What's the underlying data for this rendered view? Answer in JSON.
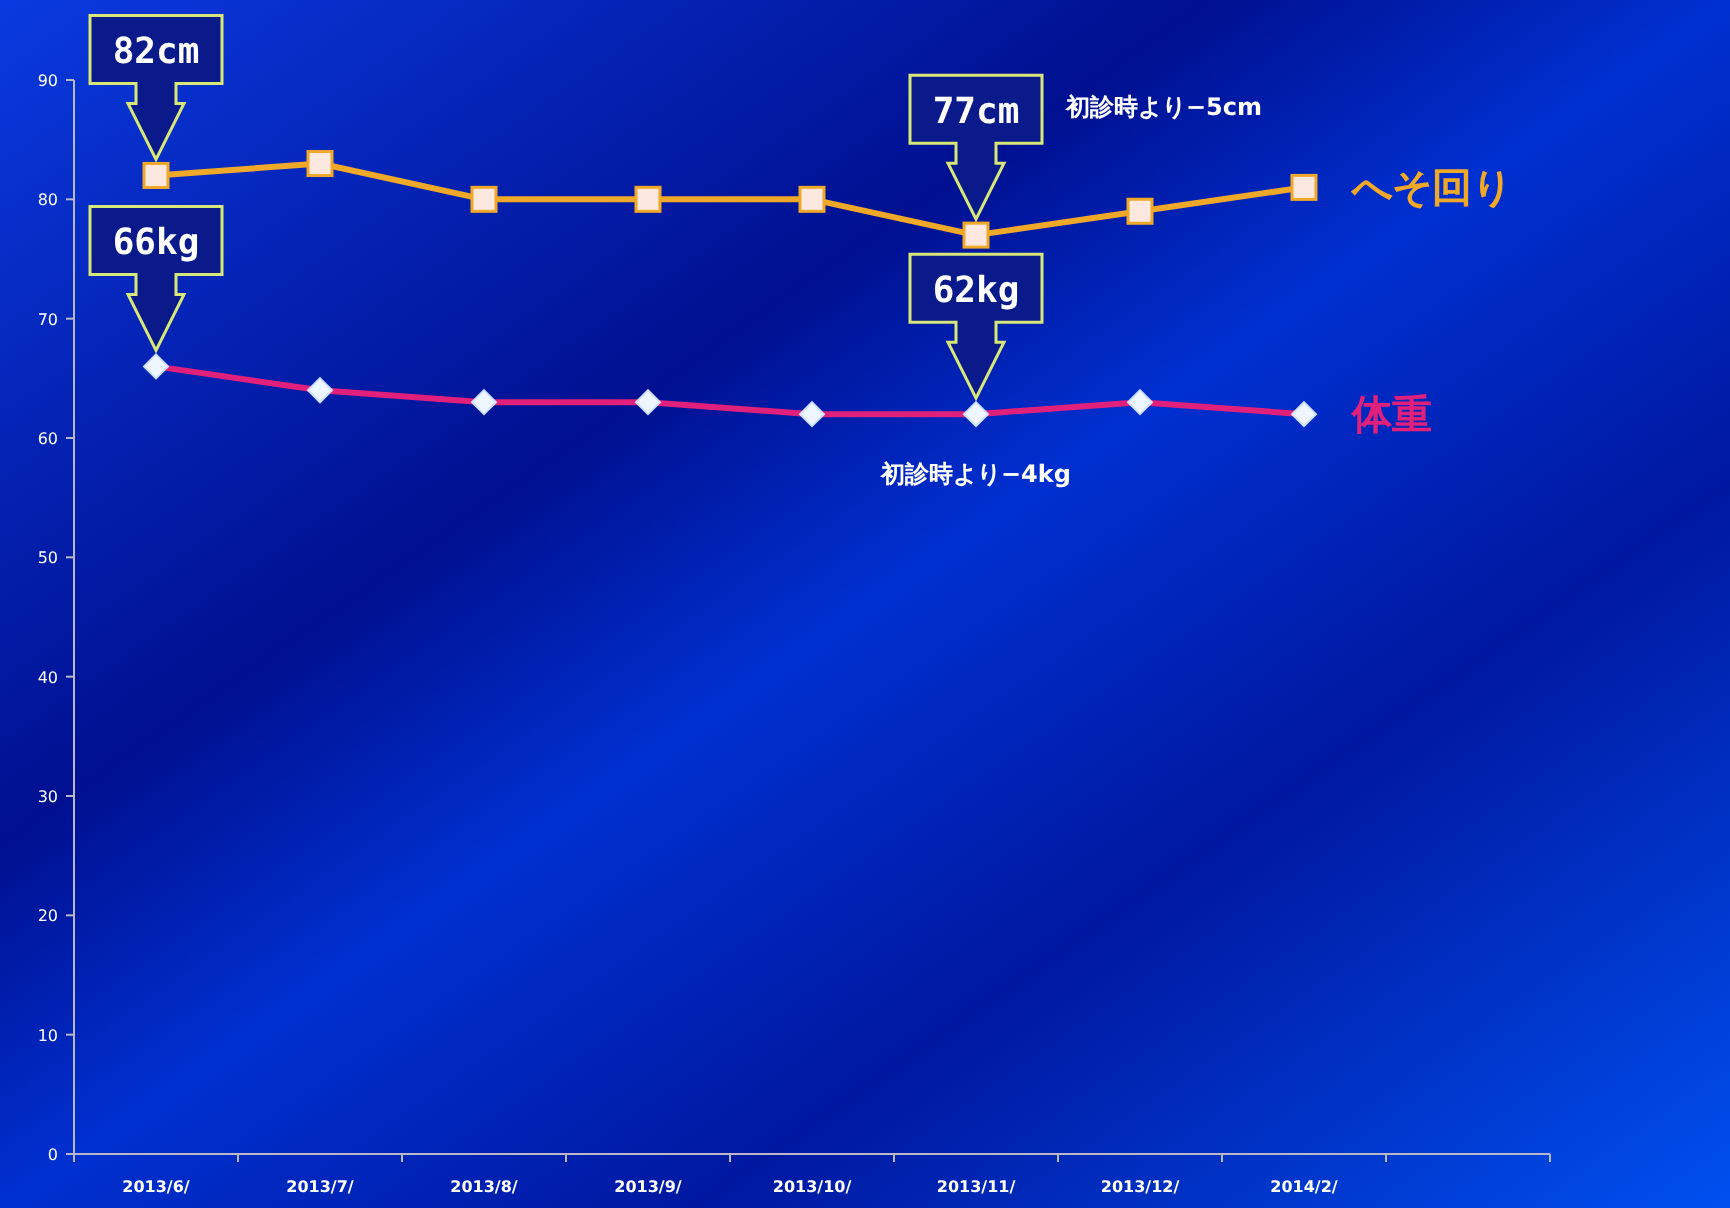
{
  "chart_data": {
    "type": "line",
    "categories": [
      "2013/6/",
      "2013/7/",
      "2013/8/",
      "2013/9/",
      "2013/10/",
      "2013/11/",
      "2013/12/",
      "2014/2/"
    ],
    "series": [
      {
        "name": "へそ回り",
        "color": "#f0a828",
        "marker": "square",
        "values": [
          82,
          83,
          80,
          80,
          80,
          77,
          79,
          81
        ]
      },
      {
        "name": "体重",
        "color": "#e0207a",
        "marker": "diamond",
        "values": [
          66,
          64,
          63,
          63,
          62,
          62,
          63,
          62
        ]
      }
    ],
    "ylim": [
      0,
      90
    ],
    "yticks": [
      0,
      10,
      20,
      30,
      40,
      50,
      60,
      70,
      80,
      90
    ],
    "grid": false,
    "annotations": [
      {
        "text": "82cm",
        "x": "2013/6/",
        "y": 82
      },
      {
        "text": "77cm",
        "x": "2013/11/",
        "y": 77
      },
      "初診時より−5cm",
      {
        "text": "66kg",
        "x": "2013/6/",
        "y": 66
      },
      {
        "text": "62kg",
        "x": "2013/11/",
        "y": 62
      },
      "初診時より−4kg"
    ]
  }
}
